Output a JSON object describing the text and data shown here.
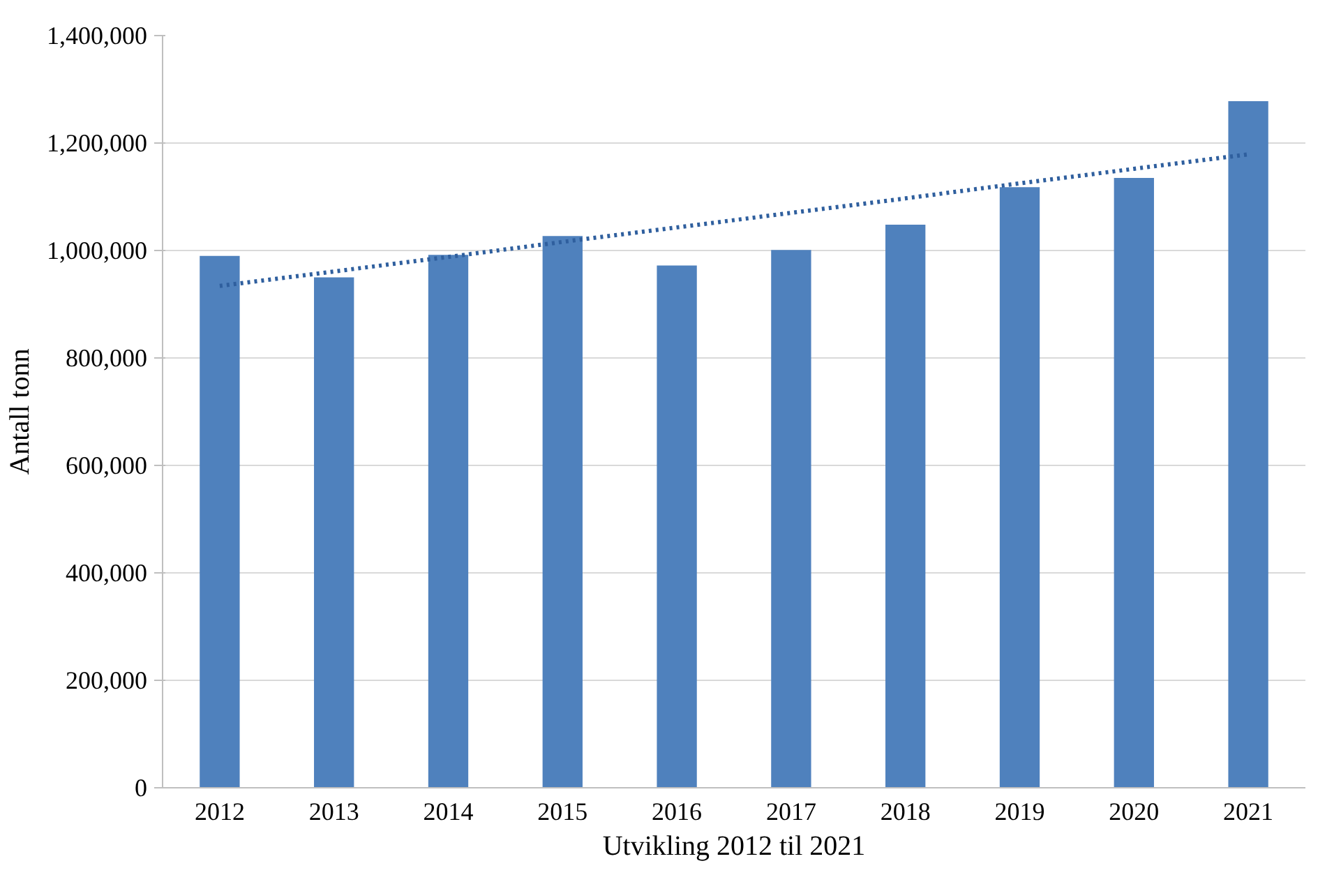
{
  "chart_data": {
    "type": "bar",
    "xlabel": "Utvikling 2012 til 2021",
    "ylabel": "Antall tonn",
    "categories": [
      "2012",
      "2013",
      "2014",
      "2015",
      "2016",
      "2017",
      "2018",
      "2019",
      "2020",
      "2021"
    ],
    "series": [
      {
        "color": "#4f81bd",
        "values": [
          990000,
          950000,
          992000,
          1027000,
          972000,
          1001000,
          1048000,
          1118000,
          1135000,
          1278000
        ]
      },
      {
        "type": "line",
        "color": "#2f5f9e",
        "line_style": "dotted",
        "marker": "none",
        "values": [
          934000,
          961000,
          988000,
          1016000,
          1043000,
          1070000,
          1097000,
          1125000,
          1152000,
          1179000
        ]
      }
    ],
    "ylim": [
      0,
      1400000
    ],
    "yticks": [
      {
        "value": 0,
        "label": "0"
      },
      {
        "value": 200000,
        "label": "200,000"
      },
      {
        "value": 400000,
        "label": "400,000"
      },
      {
        "value": 600000,
        "label": "600,000"
      },
      {
        "value": 800000,
        "label": "800,000"
      },
      {
        "value": 1000000,
        "label": "1,000,000"
      },
      {
        "value": 1200000,
        "label": "1,200,000"
      },
      {
        "value": 1400000,
        "label": "1,400,000"
      }
    ],
    "grid": "y"
  }
}
